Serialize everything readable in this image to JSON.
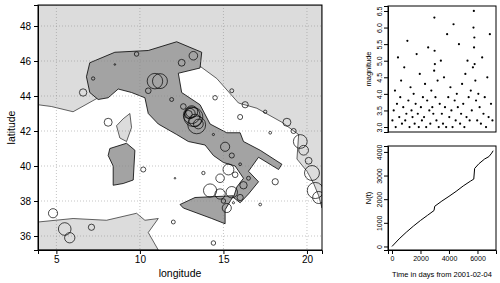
{
  "chart_data": [
    {
      "type": "scatter",
      "xlabel": "longitude",
      "ylabel": "latitude",
      "xlim": [
        3.9,
        20.9
      ],
      "ylim": [
        35.2,
        49.2
      ],
      "xticks": [
        5,
        10,
        15,
        20
      ],
      "yticks": [
        36,
        38,
        40,
        42,
        44,
        46,
        48
      ],
      "grid": true,
      "marker": "circle",
      "x": [
        13.4,
        13.2,
        13.1,
        13.3,
        13.0,
        12.9,
        13.5,
        12.6,
        13.1,
        15.5,
        16.2,
        15.0,
        15.2,
        14.8,
        16.5,
        15.7,
        14.2,
        15.6,
        16.0,
        14.8,
        15.3,
        13.8,
        19.6,
        19.8,
        20.1,
        20.3,
        20.5,
        20.7,
        19.2,
        18.8,
        17.5,
        16.3,
        15.5,
        16.0,
        17.8,
        14.5,
        10.9,
        11.2,
        10.5,
        11.9,
        12.5,
        13.2,
        9.8,
        7.2,
        8.5,
        6.6,
        15.1,
        15.5,
        14.4,
        16.0,
        5.5,
        5.8,
        7.1,
        10.2,
        12.1,
        8.1,
        4.8,
        12.0,
        18.1,
        17.2,
        14.4
      ],
      "y": [
        42.35,
        42.8,
        42.9,
        42.6,
        43.0,
        42.95,
        42.4,
        43.4,
        43.1,
        38.5,
        38.9,
        38.0,
        37.6,
        38.4,
        39.3,
        39.5,
        38.6,
        37.9,
        38.2,
        39.3,
        39.8,
        39.6,
        41.4,
        40.9,
        40.3,
        39.6,
        38.6,
        38.2,
        42.0,
        42.5,
        43.1,
        43.5,
        44.3,
        42.8,
        41.9,
        43.9,
        44.85,
        44.85,
        44.3,
        43.8,
        45.9,
        46.3,
        46.4,
        45.0,
        45.8,
        44.2,
        41.1,
        40.6,
        41.8,
        40.1,
        36.4,
        35.9,
        36.5,
        39.8,
        39.3,
        42.5,
        37.3,
        36.8,
        39.1,
        37.8,
        35.6
      ],
      "size": [
        6.3,
        6.5,
        6.1,
        5.4,
        5.0,
        4.6,
        4.9,
        4.2,
        5.3,
        5.2,
        4.5,
        4.0,
        4.8,
        5.0,
        3.9,
        4.2,
        5.5,
        3.6,
        4.3,
        4.7,
        5.1,
        3.8,
        5.6,
        4.9,
        4.4,
        5.8,
        6.0,
        5.3,
        4.1,
        4.6,
        3.8,
        4.3,
        3.9,
        4.1,
        3.7,
        4.0,
        5.9,
        5.8,
        4.2,
        3.9,
        4.4,
        4.7,
        4.0,
        3.8,
        3.5,
        4.5,
        4.8,
        4.1,
        3.6,
        3.7,
        5.4,
        5.0,
        4.3,
        4.1,
        3.5,
        4.6,
        4.8,
        3.9,
        4.3,
        3.7,
        4.0
      ],
      "land_other": [
        [
          [
            20.9,
            49.2
          ],
          [
            20.9,
            37.6
          ],
          [
            20.7,
            38.3
          ],
          [
            20.4,
            39.0
          ],
          [
            20.0,
            39.7
          ],
          [
            19.4,
            40.4
          ],
          [
            19.5,
            41.8
          ],
          [
            18.5,
            42.5
          ],
          [
            17.0,
            43.3
          ],
          [
            15.9,
            43.6
          ],
          [
            14.6,
            45.0
          ],
          [
            13.6,
            45.7
          ],
          [
            11.0,
            45.5
          ],
          [
            8.5,
            44.6
          ],
          [
            7.5,
            43.9
          ],
          [
            6.0,
            43.1
          ],
          [
            4.7,
            43.4
          ],
          [
            3.9,
            43.5
          ],
          [
            3.9,
            49.2
          ]
        ],
        [
          [
            3.9,
            35.2
          ],
          [
            3.9,
            36.8
          ],
          [
            6.0,
            37.0
          ],
          [
            8.0,
            36.9
          ],
          [
            9.8,
            37.3
          ],
          [
            10.3,
            36.9
          ],
          [
            11.1,
            37.0
          ],
          [
            10.5,
            36.2
          ],
          [
            11.1,
            35.2
          ]
        ],
        [
          [
            9.4,
            43.0
          ],
          [
            9.5,
            42.2
          ],
          [
            9.2,
            41.4
          ],
          [
            8.8,
            41.6
          ],
          [
            8.6,
            42.3
          ],
          [
            9.0,
            42.7
          ]
        ]
      ],
      "land_italy": [
        [
          [
            7.5,
            43.8
          ],
          [
            7.0,
            44.2
          ],
          [
            6.8,
            45.1
          ],
          [
            7.0,
            45.9
          ],
          [
            8.5,
            46.5
          ],
          [
            10.5,
            46.6
          ],
          [
            12.2,
            47.1
          ],
          [
            13.7,
            46.5
          ],
          [
            13.6,
            45.6
          ],
          [
            12.3,
            45.3
          ],
          [
            12.5,
            44.2
          ],
          [
            13.6,
            43.5
          ],
          [
            14.2,
            42.4
          ],
          [
            15.2,
            41.9
          ],
          [
            16.0,
            41.9
          ],
          [
            16.2,
            41.4
          ],
          [
            17.2,
            40.9
          ],
          [
            18.5,
            40.1
          ],
          [
            18.3,
            39.8
          ],
          [
            17.1,
            40.5
          ],
          [
            16.5,
            39.7
          ],
          [
            17.1,
            39.1
          ],
          [
            16.5,
            38.4
          ],
          [
            16.0,
            37.9
          ],
          [
            15.6,
            38.2
          ],
          [
            15.8,
            38.8
          ],
          [
            16.2,
            39.3
          ],
          [
            15.7,
            40.0
          ],
          [
            15.0,
            40.2
          ],
          [
            14.4,
            40.6
          ],
          [
            13.9,
            41.2
          ],
          [
            12.9,
            41.4
          ],
          [
            12.2,
            41.8
          ],
          [
            11.1,
            42.4
          ],
          [
            10.5,
            43.0
          ],
          [
            10.3,
            43.9
          ],
          [
            9.5,
            44.2
          ],
          [
            8.7,
            44.4
          ],
          [
            8.1,
            43.9
          ]
        ],
        [
          [
            12.4,
            37.8
          ],
          [
            13.3,
            38.2
          ],
          [
            15.6,
            38.3
          ],
          [
            15.1,
            37.5
          ],
          [
            15.1,
            36.7
          ],
          [
            14.3,
            37.0
          ],
          [
            12.6,
            37.6
          ]
        ],
        [
          [
            8.2,
            41.0
          ],
          [
            9.2,
            41.3
          ],
          [
            9.7,
            40.9
          ],
          [
            9.6,
            39.2
          ],
          [
            9.0,
            39.0
          ],
          [
            8.4,
            38.9
          ],
          [
            8.4,
            40.0
          ],
          [
            8.1,
            40.6
          ]
        ]
      ]
    },
    {
      "type": "scatter",
      "ylabel": "magnitude",
      "marker": "point",
      "tick_labels": "y",
      "xlim": [
        -280,
        7300
      ],
      "ylim": [
        2.85,
        6.65
      ],
      "yticks": [
        {
          "value": 3,
          "label": "3.0"
        },
        3.5,
        {
          "value": 4,
          "label": "4.0"
        },
        4.5,
        {
          "value": 5,
          "label": "5.0"
        },
        5.5,
        {
          "value": 6,
          "label": "6.0"
        },
        6.5
      ],
      "x": [
        30,
        120,
        210,
        260,
        350,
        420,
        510,
        580,
        640,
        700,
        790,
        860,
        930,
        1010,
        1080,
        1150,
        1230,
        1300,
        1370,
        1440,
        1520,
        1590,
        1660,
        1730,
        1810,
        1880,
        1950,
        2030,
        2100,
        2170,
        2250,
        2320,
        2400,
        2470,
        2540,
        2620,
        2690,
        2760,
        2830,
        2900,
        2960,
        2975,
        2990,
        3010,
        3050,
        3120,
        3200,
        3280,
        3350,
        3430,
        3500,
        3580,
        3650,
        3720,
        3800,
        3870,
        3950,
        4020,
        4100,
        4170,
        4250,
        4320,
        4400,
        4470,
        4550,
        4620,
        4700,
        4780,
        4850,
        4920,
        5000,
        5080,
        5150,
        5230,
        5300,
        5380,
        5450,
        5530,
        5600,
        5680,
        5720,
        5745,
        5760,
        5780,
        5800,
        5850,
        5900,
        5980,
        6060,
        6150,
        6240,
        6330,
        6420,
        6510,
        6600,
        6690,
        6780,
        6870,
        6950,
        7050
      ],
      "y": [
        3.2,
        3.5,
        4.1,
        3.0,
        3.7,
        5.1,
        3.3,
        3.9,
        4.4,
        3.1,
        3.6,
        4.8,
        3.2,
        3.4,
        5.6,
        3.8,
        3.0,
        4.2,
        3.5,
        3.3,
        4.0,
        3.1,
        3.7,
        5.2,
        3.4,
        3.0,
        4.6,
        3.6,
        3.2,
        3.9,
        3.3,
        4.3,
        3.0,
        3.8,
        5.4,
        3.5,
        3.1,
        4.1,
        3.6,
        3.4,
        4.7,
        6.3,
        5.3,
        4.9,
        3.9,
        3.2,
        4.4,
        3.0,
        3.7,
        5.0,
        3.4,
        3.1,
        4.5,
        3.6,
        3.0,
        5.8,
        3.9,
        3.3,
        4.2,
        3.5,
        3.0,
        6.1,
        3.8,
        3.2,
        4.0,
        3.6,
        5.5,
        3.1,
        3.4,
        4.3,
        3.7,
        3.0,
        4.6,
        3.3,
        5.0,
        3.9,
        3.2,
        4.1,
        3.5,
        4.8,
        6.0,
        6.5,
        5.4,
        5.7,
        4.9,
        4.4,
        3.8,
        3.2,
        4.0,
        3.6,
        3.1,
        5.1,
        3.4,
        3.9,
        3.0,
        4.5,
        3.3,
        5.8,
        3.7,
        3.2
      ]
    },
    {
      "type": "line",
      "xlabel": "Time in days from 2001-02-04",
      "ylabel": "N(t)",
      "xlim": [
        -280,
        7300
      ],
      "ylim": [
        -150,
        4250
      ],
      "xticks": [
        0,
        2000,
        4000,
        6000
      ],
      "yticks": [
        0,
        1000,
        2000,
        3000,
        4000
      ],
      "x": [
        0,
        500,
        1000,
        1500,
        2000,
        2500,
        2950,
        3000,
        3500,
        4000,
        4500,
        5000,
        5500,
        5740,
        5800,
        6100,
        6500,
        6800,
        7000,
        7100
      ],
      "y": [
        0,
        320,
        600,
        860,
        1100,
        1320,
        1520,
        1700,
        1920,
        2120,
        2330,
        2560,
        2760,
        2850,
        3300,
        3500,
        3700,
        3800,
        3950,
        4050
      ]
    }
  ]
}
